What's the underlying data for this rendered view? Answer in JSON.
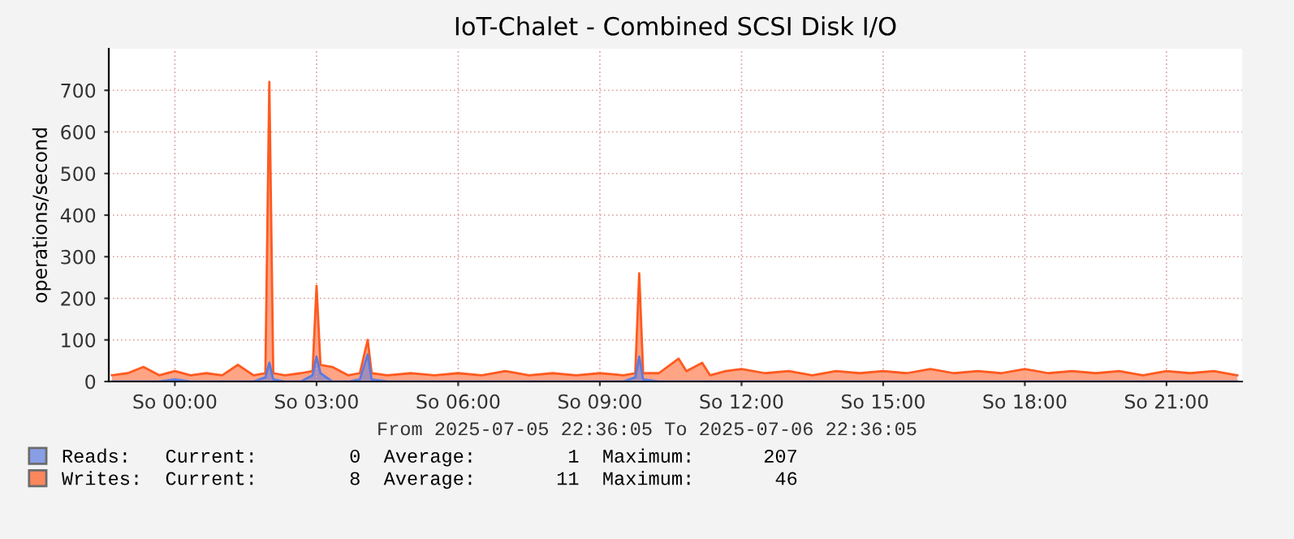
{
  "chart_data": {
    "type": "area",
    "title": "IoT-Chalet - Combined SCSI Disk I/O",
    "ylabel": "operations/second",
    "annotations": [
      "From 2025-07-05 22:36:05 To 2025-07-06 22:36:05"
    ],
    "x": [
      "2025-07-05T22:40",
      "2025-07-05T23:00",
      "2025-07-05T23:20",
      "2025-07-05T23:40",
      "2025-07-06T00:00",
      "2025-07-06T00:20",
      "2025-07-06T00:40",
      "2025-07-06T01:00",
      "2025-07-06T01:20",
      "2025-07-06T01:40",
      "2025-07-06T01:55",
      "2025-07-06T02:00",
      "2025-07-06T02:05",
      "2025-07-06T02:20",
      "2025-07-06T02:40",
      "2025-07-06T02:55",
      "2025-07-06T03:00",
      "2025-07-06T03:05",
      "2025-07-06T03:20",
      "2025-07-06T03:40",
      "2025-07-06T03:55",
      "2025-07-06T04:05",
      "2025-07-06T04:10",
      "2025-07-06T04:30",
      "2025-07-06T05:00",
      "2025-07-06T05:30",
      "2025-07-06T06:00",
      "2025-07-06T06:30",
      "2025-07-06T07:00",
      "2025-07-06T07:30",
      "2025-07-06T08:00",
      "2025-07-06T08:30",
      "2025-07-06T09:00",
      "2025-07-06T09:30",
      "2025-07-06T09:45",
      "2025-07-06T09:50",
      "2025-07-06T09:55",
      "2025-07-06T10:15",
      "2025-07-06T10:40",
      "2025-07-06T10:50",
      "2025-07-06T11:10",
      "2025-07-06T11:20",
      "2025-07-06T11:40",
      "2025-07-06T12:00",
      "2025-07-06T12:30",
      "2025-07-06T13:00",
      "2025-07-06T13:30",
      "2025-07-06T14:00",
      "2025-07-06T14:30",
      "2025-07-06T15:00",
      "2025-07-06T15:30",
      "2025-07-06T16:00",
      "2025-07-06T16:30",
      "2025-07-06T17:00",
      "2025-07-06T17:30",
      "2025-07-06T18:00",
      "2025-07-06T18:30",
      "2025-07-06T19:00",
      "2025-07-06T19:30",
      "2025-07-06T20:00",
      "2025-07-06T20:30",
      "2025-07-06T21:00",
      "2025-07-06T21:30",
      "2025-07-06T22:00",
      "2025-07-06T22:30"
    ],
    "series": [
      {
        "name": "Writes:  Current:        8  Average:       11  Maximum:       46",
        "color": "#ff5a1f",
        "values": [
          15,
          20,
          35,
          15,
          25,
          15,
          20,
          15,
          40,
          15,
          20,
          720,
          20,
          15,
          20,
          25,
          230,
          40,
          35,
          15,
          20,
          100,
          20,
          15,
          20,
          15,
          20,
          15,
          25,
          15,
          20,
          15,
          20,
          15,
          20,
          260,
          20,
          20,
          55,
          25,
          45,
          15,
          25,
          30,
          20,
          25,
          15,
          25,
          20,
          25,
          20,
          30,
          20,
          25,
          20,
          30,
          20,
          25,
          20,
          25,
          15,
          25,
          20,
          25,
          15
        ]
      },
      {
        "name": "Reads:   Current:        0  Average:        1  Maximum:      207",
        "color": "#5b7be0",
        "values": [
          0,
          0,
          0,
          0,
          5,
          0,
          0,
          0,
          0,
          0,
          10,
          45,
          5,
          0,
          0,
          15,
          60,
          20,
          0,
          0,
          5,
          65,
          5,
          0,
          0,
          0,
          0,
          0,
          0,
          0,
          0,
          0,
          0,
          0,
          10,
          60,
          5,
          0,
          0,
          0,
          0,
          0,
          0,
          0,
          0,
          0,
          0,
          0,
          0,
          0,
          0,
          0,
          0,
          0,
          0,
          0,
          0,
          0,
          0,
          0,
          0,
          0,
          0,
          0,
          0
        ]
      }
    ],
    "xlim": [
      "2025-07-05T22:36",
      "2025-07-06T22:36"
    ],
    "xticks": [
      {
        "value": "2025-07-06T00:00",
        "label": "So 00:00"
      },
      {
        "value": "2025-07-06T03:00",
        "label": "So 03:00"
      },
      {
        "value": "2025-07-06T06:00",
        "label": "So 06:00"
      },
      {
        "value": "2025-07-06T09:00",
        "label": "So 09:00"
      },
      {
        "value": "2025-07-06T12:00",
        "label": "So 12:00"
      },
      {
        "value": "2025-07-06T15:00",
        "label": "So 15:00"
      },
      {
        "value": "2025-07-06T18:00",
        "label": "So 18:00"
      },
      {
        "value": "2025-07-06T21:00",
        "label": "So 21:00"
      }
    ],
    "ylim": [
      0,
      800
    ],
    "yticks": [
      0,
      100,
      200,
      300,
      400,
      500,
      600,
      700
    ],
    "grid": true,
    "legend": "bottom left"
  }
}
